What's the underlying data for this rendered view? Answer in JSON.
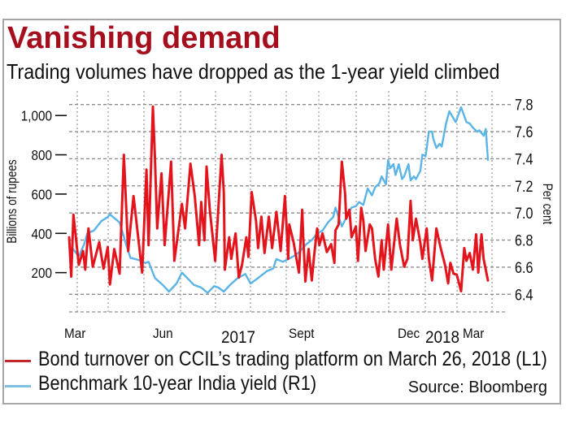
{
  "colors": {
    "title": "#a50e1c",
    "text": "#111111",
    "grid": "#8c8c8c",
    "frame": "#a6a6a6"
  },
  "chart_data": {
    "type": "line",
    "title": "Vanishing demand",
    "subtitle": "Trading volumes have dropped as the 1-year yield climbed",
    "source": "Source: Bloomberg",
    "grid": true,
    "legend": {
      "placement": "bottom-left"
    },
    "xlim": [
      "2017-03-01",
      "2018-03-26"
    ],
    "x_tick_labels": [
      "Mar",
      "Jun",
      "2017",
      "Sept",
      "Dec",
      "2018",
      "Mar"
    ],
    "y_left": {
      "label": "Billions of rupees",
      "range": [
        0,
        1125
      ],
      "ticks": [
        200,
        400,
        600,
        800,
        1000
      ],
      "tick_labels": [
        "200",
        "400",
        "600",
        "800",
        "1,000"
      ]
    },
    "y_right": {
      "label": "Per cent",
      "range": [
        6.27,
        7.9
      ],
      "ticks": [
        6.4,
        6.6,
        6.8,
        7.0,
        7.2,
        7.4,
        7.6,
        7.8
      ],
      "tick_labels": [
        "6.4",
        "6.6",
        "6.8",
        "7.0",
        "7.2",
        "7.4",
        "7.6",
        "7.8"
      ]
    },
    "series": [
      {
        "name": "Bond turnover on CCIL’s trading platform on March 26, 2018 (L1)",
        "axis": "left",
        "color": "#e3141c",
        "legend_color": "#c1272d",
        "x": [
          "2017-03-01",
          "2017-03-03",
          "2017-03-05",
          "2017-03-10",
          "2017-03-14",
          "2017-03-16",
          "2017-03-19",
          "2017-03-23",
          "2017-03-29",
          "2017-04-02",
          "2017-04-06",
          "2017-04-08",
          "2017-04-12",
          "2017-04-17",
          "2017-04-21",
          "2017-04-25",
          "2017-04-30",
          "2017-05-08",
          "2017-05-12",
          "2017-05-14",
          "2017-05-18",
          "2017-05-20",
          "2017-05-22",
          "2017-05-26",
          "2017-05-29",
          "2017-06-04",
          "2017-06-07",
          "2017-06-14",
          "2017-06-17",
          "2017-06-22",
          "2017-06-26",
          "2017-06-30",
          "2017-07-02",
          "2017-07-05",
          "2017-07-07",
          "2017-07-10",
          "2017-07-15",
          "2017-07-21",
          "2017-07-23",
          "2017-07-24",
          "2017-07-28",
          "2017-07-30",
          "2017-08-03",
          "2017-08-06",
          "2017-08-09",
          "2017-08-13",
          "2017-08-15",
          "2017-08-18",
          "2017-08-22",
          "2017-08-24",
          "2017-08-27",
          "2017-08-30",
          "2017-09-03",
          "2017-09-06",
          "2017-09-10",
          "2017-09-14",
          "2017-09-18",
          "2017-09-21",
          "2017-09-22",
          "2017-09-26",
          "2017-10-01",
          "2017-10-04",
          "2017-10-05",
          "2017-10-07",
          "2017-10-10",
          "2017-10-13",
          "2017-10-15",
          "2017-10-18",
          "2017-10-20",
          "2017-10-23",
          "2017-10-27",
          "2017-10-31",
          "2017-11-03",
          "2017-11-04",
          "2017-11-07",
          "2017-11-10",
          "2017-11-13",
          "2017-11-14",
          "2017-11-17",
          "2017-11-19",
          "2017-11-23",
          "2017-11-25",
          "2017-11-28",
          "2017-11-30",
          "2017-12-02",
          "2017-12-06",
          "2017-12-08",
          "2017-12-11",
          "2017-12-14",
          "2017-12-17",
          "2017-12-19",
          "2017-12-23",
          "2017-12-26",
          "2017-12-31",
          "2018-01-03",
          "2018-01-07",
          "2018-01-10",
          "2018-01-13",
          "2018-01-15",
          "2018-01-18",
          "2018-01-22",
          "2018-01-24",
          "2018-01-28",
          "2018-01-30",
          "2018-02-02",
          "2018-02-06",
          "2018-02-10",
          "2018-02-14",
          "2018-02-17",
          "2018-02-19",
          "2018-02-22",
          "2018-02-25",
          "2018-03-01",
          "2018-03-04",
          "2018-03-06",
          "2018-03-09",
          "2018-03-12",
          "2018-03-15",
          "2018-03-17",
          "2018-03-20",
          "2018-03-22",
          "2018-03-26"
        ],
        "values": [
          380,
          180,
          495,
          240,
          310,
          215,
          425,
          230,
          355,
          220,
          330,
          140,
          320,
          195,
          800,
          310,
          590,
          200,
          725,
          340,
          1045,
          775,
          425,
          705,
          340,
          765,
          260,
          550,
          425,
          755,
          590,
          340,
          560,
          365,
          740,
          520,
          260,
          800,
          610,
          215,
          380,
          270,
          400,
          175,
          240,
          380,
          280,
          610,
          465,
          325,
          485,
          300,
          485,
          325,
          510,
          310,
          590,
          270,
          445,
          355,
          200,
          520,
          380,
          155,
          320,
          160,
          280,
          425,
          340,
          400,
          305,
          345,
          250,
          415,
          445,
          765,
          600,
          475,
          520,
          380,
          435,
          260,
          530,
          465,
          310,
          445,
          425,
          270,
          180,
          365,
          215,
          445,
          215,
          475,
          345,
          230,
          270,
          565,
          365,
          475,
          355,
          270,
          425,
          270,
          160,
          425,
          325,
          240,
          145,
          250,
          195,
          190,
          105,
          325,
          260,
          300,
          215,
          395,
          200,
          395,
          270,
          160
        ]
      },
      {
        "name": "Benchmark 10-year India yield (R1)",
        "axis": "right",
        "color": "#5ab4e6",
        "legend_color": "#7fbfe0",
        "x": [
          "2017-03-04",
          "2017-03-10",
          "2017-03-15",
          "2017-03-18",
          "2017-03-24",
          "2017-03-31",
          "2017-04-06",
          "2017-04-08",
          "2017-04-17",
          "2017-04-23",
          "2017-04-27",
          "2017-05-06",
          "2017-05-11",
          "2017-05-14",
          "2017-05-20",
          "2017-05-27",
          "2017-06-02",
          "2017-06-09",
          "2017-06-14",
          "2017-06-19",
          "2017-06-25",
          "2017-07-02",
          "2017-07-08",
          "2017-07-14",
          "2017-07-18",
          "2017-07-23",
          "2017-07-29",
          "2017-08-05",
          "2017-08-12",
          "2017-08-17",
          "2017-08-24",
          "2017-09-01",
          "2017-09-07",
          "2017-09-10",
          "2017-09-16",
          "2017-09-21",
          "2017-09-28",
          "2017-10-01",
          "2017-10-08",
          "2017-10-13",
          "2017-10-18",
          "2017-10-23",
          "2017-10-28",
          "2017-11-02",
          "2017-11-04",
          "2017-11-10",
          "2017-11-13",
          "2017-11-19",
          "2017-11-23",
          "2017-11-26",
          "2017-11-30",
          "2017-12-04",
          "2017-12-08",
          "2017-12-11",
          "2017-12-15",
          "2017-12-17",
          "2017-12-21",
          "2017-12-23",
          "2017-12-25",
          "2017-12-28",
          "2017-12-30",
          "2018-01-02",
          "2018-01-05",
          "2018-01-07",
          "2018-01-11",
          "2018-01-13",
          "2018-01-16",
          "2018-01-18",
          "2018-01-22",
          "2018-01-24",
          "2018-01-27",
          "2018-01-30",
          "2018-02-02",
          "2018-02-03",
          "2018-02-06",
          "2018-02-09",
          "2018-02-11",
          "2018-02-15",
          "2018-02-18",
          "2018-02-24",
          "2018-03-01",
          "2018-03-06",
          "2018-03-09",
          "2018-03-12",
          "2018-03-16",
          "2018-03-18",
          "2018-03-22",
          "2018-03-24",
          "2018-03-26"
        ],
        "values": [
          6.74,
          6.68,
          6.77,
          6.85,
          6.87,
          6.94,
          6.97,
          6.99,
          6.93,
          6.77,
          6.67,
          6.65,
          6.63,
          6.64,
          6.52,
          6.47,
          6.42,
          6.48,
          6.56,
          6.52,
          6.47,
          6.45,
          6.41,
          6.46,
          6.45,
          6.42,
          6.47,
          6.52,
          6.55,
          6.48,
          6.52,
          6.57,
          6.59,
          6.66,
          6.64,
          6.66,
          6.69,
          6.71,
          6.77,
          6.8,
          6.85,
          6.87,
          6.93,
          6.97,
          7.04,
          6.9,
          6.95,
          7.04,
          7.05,
          7.08,
          7.06,
          7.18,
          7.13,
          7.19,
          7.22,
          7.27,
          7.21,
          7.39,
          7.33,
          7.36,
          7.28,
          7.36,
          7.25,
          7.27,
          7.36,
          7.24,
          7.27,
          7.25,
          7.31,
          7.43,
          7.42,
          7.6,
          7.6,
          7.55,
          7.48,
          7.51,
          7.49,
          7.66,
          7.75,
          7.67,
          7.78,
          7.67,
          7.66,
          7.63,
          7.6,
          7.61,
          7.57,
          7.62,
          7.39
        ]
      }
    ]
  }
}
